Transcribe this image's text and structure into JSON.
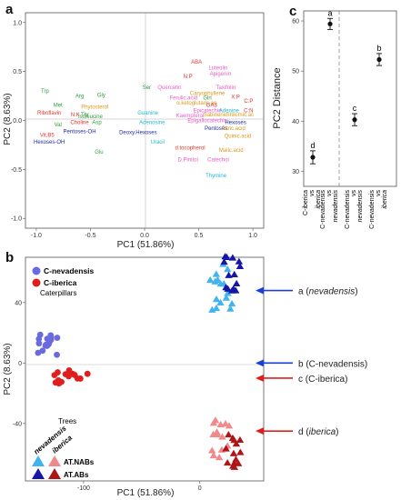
{
  "panels": {
    "a": "a",
    "b": "b",
    "c": "c"
  },
  "panel_a": {
    "xlabel": "PC1 (51.86%)",
    "ylabel": "PC2 (8.63%)",
    "x_ticks": [
      "-1.0",
      "-0.5",
      "0.0",
      "0.5",
      "1.0"
    ],
    "y_ticks": [
      "-1.0",
      "-0.5",
      "0.0",
      "0.5",
      "1.0"
    ],
    "variables": [
      {
        "label": "ABA",
        "x": 0.48,
        "y": 0.6,
        "color": "#e0352b"
      },
      {
        "label": "N:P",
        "x": 0.4,
        "y": 0.45,
        "color": "#e0352b"
      },
      {
        "label": "Luteolin",
        "x": 0.68,
        "y": 0.54,
        "color": "#e85cc9"
      },
      {
        "label": "Apigenin",
        "x": 0.7,
        "y": 0.48,
        "color": "#e85cc9"
      },
      {
        "label": "Taxifolin",
        "x": 0.75,
        "y": 0.34,
        "color": "#e85cc9"
      },
      {
        "label": "Quercetin",
        "x": 0.23,
        "y": 0.34,
        "color": "#e85cc9"
      },
      {
        "label": "Caryophyllene",
        "x": 0.58,
        "y": 0.28,
        "color": "#d99a1c"
      },
      {
        "label": "Ferulic.acid",
        "x": 0.36,
        "y": 0.23,
        "color": "#e85cc9"
      },
      {
        "label": "Gln",
        "x": 0.58,
        "y": 0.23,
        "color": "#2e9c3c"
      },
      {
        "label": "α.ketoglutaric.ac",
        "x": 0.48,
        "y": 0.18,
        "color": "#d99a1c"
      },
      {
        "label": "Epicatechin",
        "x": 0.58,
        "y": 0.1,
        "color": "#e85cc9"
      },
      {
        "label": "Kaempferol",
        "x": 0.42,
        "y": 0.05,
        "color": "#e85cc9"
      },
      {
        "label": "GA3",
        "x": 0.62,
        "y": 0.16,
        "color": "#e0352b"
      },
      {
        "label": "Sabinene",
        "x": 0.65,
        "y": 0.06,
        "color": "#d99a1c"
      },
      {
        "label": "Adenine",
        "x": 0.78,
        "y": 0.1,
        "color": "#1fb8d4"
      },
      {
        "label": "X:P",
        "x": 0.84,
        "y": 0.24,
        "color": "#e0352b"
      },
      {
        "label": "C:P",
        "x": 0.96,
        "y": 0.2,
        "color": "#e0352b"
      },
      {
        "label": "C:N",
        "x": 0.96,
        "y": 0.1,
        "color": "#e0352b"
      },
      {
        "label": "Shikimic.ac",
        "x": 0.88,
        "y": 0.06,
        "color": "#d99a1c"
      },
      {
        "label": "Epigallocatechin",
        "x": 0.58,
        "y": 0.0,
        "color": "#e85cc9"
      },
      {
        "label": "Hexoses",
        "x": 0.84,
        "y": -0.02,
        "color": "#1f2c9e"
      },
      {
        "label": "Pentoses",
        "x": 0.66,
        "y": -0.08,
        "color": "#1f2c9e"
      },
      {
        "label": "Citric.acid",
        "x": 0.82,
        "y": -0.08,
        "color": "#d99a1c"
      },
      {
        "label": "Quinic.acid",
        "x": 0.86,
        "y": -0.16,
        "color": "#d99a1c"
      },
      {
        "label": "d.tocopherol",
        "x": 0.42,
        "y": -0.28,
        "color": "#e0352b"
      },
      {
        "label": "Malic.acid",
        "x": 0.8,
        "y": -0.3,
        "color": "#d99a1c"
      },
      {
        "label": "D.Pinitol",
        "x": 0.4,
        "y": -0.4,
        "color": "#e85cc9"
      },
      {
        "label": "Catechol",
        "x": 0.68,
        "y": -0.4,
        "color": "#e85cc9"
      },
      {
        "label": "Thymine",
        "x": 0.66,
        "y": -0.56,
        "color": "#1fb8d4"
      },
      {
        "label": "Guanine",
        "x": 0.03,
        "y": 0.08,
        "color": "#1fb8d4"
      },
      {
        "label": "Adenosine",
        "x": 0.07,
        "y": -0.02,
        "color": "#1fb8d4"
      },
      {
        "label": "Deoxy.Hexoses",
        "x": -0.06,
        "y": -0.12,
        "color": "#1f2c9e"
      },
      {
        "label": "Uracil",
        "x": 0.12,
        "y": -0.22,
        "color": "#1fb8d4"
      },
      {
        "label": "Ser",
        "x": 0.02,
        "y": 0.34,
        "color": "#2e9c3c"
      },
      {
        "label": "Gly",
        "x": -0.4,
        "y": 0.26,
        "color": "#2e9c3c"
      },
      {
        "label": "Arg",
        "x": -0.6,
        "y": 0.25,
        "color": "#2e9c3c"
      },
      {
        "label": "Trp",
        "x": -0.92,
        "y": 0.3,
        "color": "#2e9c3c"
      },
      {
        "label": "Met",
        "x": -0.8,
        "y": 0.16,
        "color": "#2e9c3c"
      },
      {
        "label": "Riboflavin",
        "x": -0.88,
        "y": 0.08,
        "color": "#e0352b"
      },
      {
        "label": "N:K",
        "x": -0.64,
        "y": 0.06,
        "color": "#e0352b"
      },
      {
        "label": "Thr",
        "x": -0.55,
        "y": 0.06,
        "color": "#2e9c3c"
      },
      {
        "label": "Phytosterol",
        "x": -0.46,
        "y": 0.14,
        "color": "#d99a1c"
      },
      {
        "label": "Isoleucine",
        "x": -0.5,
        "y": 0.04,
        "color": "#2e9c3c"
      },
      {
        "label": "Asp",
        "x": -0.44,
        "y": -0.02,
        "color": "#2e9c3c"
      },
      {
        "label": "Choline",
        "x": -0.6,
        "y": -0.02,
        "color": "#e0352b"
      },
      {
        "label": "Pentoses-OH",
        "x": -0.6,
        "y": -0.11,
        "color": "#1f2c9e"
      },
      {
        "label": "Hexoses-OH",
        "x": -0.88,
        "y": -0.22,
        "color": "#1f2c9e"
      },
      {
        "label": "Vit.B5",
        "x": -0.9,
        "y": -0.15,
        "color": "#e0352b"
      },
      {
        "label": "Val",
        "x": -0.8,
        "y": -0.04,
        "color": "#2e9c3c"
      },
      {
        "label": "Glu",
        "x": -0.42,
        "y": -0.32,
        "color": "#2e9c3c"
      }
    ]
  },
  "panel_b": {
    "xlabel": "PC1 (51.86%)",
    "ylabel": "PC2 (8.63%)",
    "x_ticks": [
      {
        "label": "-100",
        "v": -100
      },
      {
        "label": "0",
        "v": 0
      }
    ],
    "y_ticks": [
      {
        "label": "40",
        "v": 40
      },
      {
        "label": "0",
        "v": 0
      },
      {
        "label": "-40",
        "v": -40
      }
    ],
    "legend_caterpillars": {
      "title": "Caterpillars",
      "items": [
        {
          "label": "C-nevadensis",
          "color": "#6a6ae0"
        },
        {
          "label": "C-iberica",
          "color": "#e01e1e"
        }
      ]
    },
    "legend_trees": {
      "title": "Trees",
      "col1": "nevadensis",
      "col2": "iberica",
      "rows": [
        {
          "label": "AT.NABs",
          "c1": "#41b4f0",
          "c2": "#f08a8a"
        },
        {
          "label": "AT.ABs",
          "c1": "#1515a8",
          "c2": "#b01515"
        }
      ]
    },
    "annotations": [
      {
        "prefix": "a (",
        "italic": "nevadensis",
        "suffix": ")",
        "y": 48,
        "color": "#1a3fd6"
      },
      {
        "prefix": "b (C-nevadensis)",
        "italic": "",
        "suffix": "",
        "y": 0,
        "color": "#1a3fd6"
      },
      {
        "prefix": "c (C-iberica)",
        "italic": "",
        "suffix": "",
        "y": -10,
        "color": "#e01e1e"
      },
      {
        "prefix": "d  (",
        "italic": "iberica",
        "suffix": ")",
        "y": -45,
        "color": "#e01e1e"
      }
    ]
  },
  "panel_c": {
    "ylabel": "PC2 Distance",
    "y_ticks": [
      30,
      40,
      50,
      60
    ],
    "ylim": [
      27,
      62
    ],
    "points": [
      {
        "category": [
          "C-iberica",
          "vs",
          "iberica"
        ],
        "value": 32.8,
        "err": 1.3,
        "letter": "d"
      },
      {
        "category": [
          "C-nevadensis",
          "vs",
          "nevadensis"
        ],
        "value": 59.4,
        "err": 1.1,
        "letter": "a"
      },
      {
        "category": [
          "C-nevadensis",
          "vs",
          "nevadensis"
        ],
        "value": 40.3,
        "err": 1.2,
        "letter": "c"
      },
      {
        "category": [
          "C-nevadensis",
          "vs",
          "iberica"
        ],
        "value": 52.3,
        "err": 1.2,
        "letter": "b"
      }
    ]
  }
}
